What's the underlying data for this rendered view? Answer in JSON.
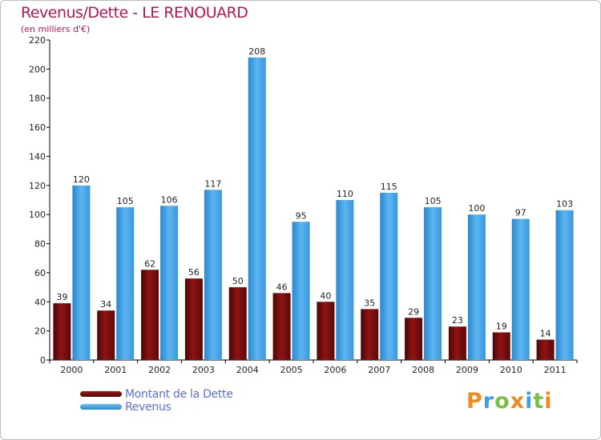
{
  "title": "Revenus/Dette - LE RENOUARD",
  "subtitle": "(en milliers d'€)",
  "brand": "Proxiti",
  "colors": {
    "dette": "#7a1010",
    "revenus": "#3f9fe2",
    "title": "#b0175a",
    "legend_text": "#5b6ed6"
  },
  "chart_data": {
    "type": "bar",
    "title": "Revenus/Dette - LE RENOUARD",
    "ylabel": "(en milliers d'€)",
    "xlabel": "",
    "categories": [
      "2000",
      "2001",
      "2002",
      "2003",
      "2004",
      "2005",
      "2006",
      "2007",
      "2008",
      "2009",
      "2010",
      "2011"
    ],
    "series": [
      {
        "name": "Montant de la Dette",
        "values": [
          39,
          34,
          62,
          56,
          50,
          46,
          40,
          35,
          29,
          23,
          19,
          14
        ]
      },
      {
        "name": "Revenus",
        "values": [
          120,
          105,
          106,
          117,
          208,
          95,
          110,
          115,
          105,
          100,
          97,
          103
        ]
      }
    ],
    "ylim": [
      0,
      220
    ],
    "yticks": [
      0,
      20,
      40,
      60,
      80,
      100,
      120,
      140,
      160,
      180,
      200,
      220
    ],
    "grid": false,
    "legend_position": "bottom-left"
  }
}
